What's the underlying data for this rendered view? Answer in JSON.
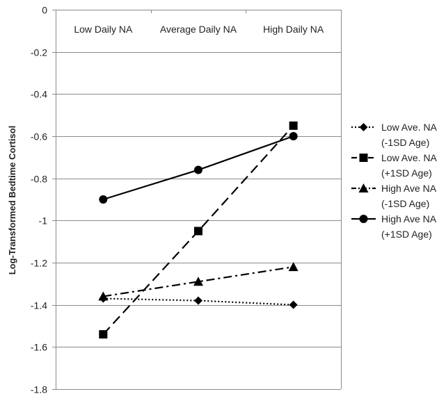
{
  "chart_data": {
    "type": "line",
    "title": "",
    "xlabel": "",
    "ylabel": "Log-Transformed Bedtime Cortisol",
    "categories": [
      "Low Daily NA",
      "Average Daily NA",
      "High Daily NA"
    ],
    "ylim": [
      -1.8,
      0
    ],
    "y_ticks": [
      "0",
      "-0.2",
      "-0.4",
      "-0.6",
      "-0.8",
      "-1",
      "-1.2",
      "-1.4",
      "-1.6",
      "-1.8"
    ],
    "y_tick_values": [
      0,
      -0.2,
      -0.4,
      -0.6,
      -0.8,
      -1,
      -1.2,
      -1.4,
      -1.6,
      -1.8
    ],
    "x_axis_position": "top",
    "grid": "horizontal",
    "legend_position": "right",
    "series": [
      {
        "name": "Low Ave. NA (-1SD Age)",
        "label_lines": [
          "Low Ave. NA",
          "(-1SD Age)"
        ],
        "values": [
          -1.37,
          -1.38,
          -1.4
        ],
        "marker": "diamond",
        "dash": "dotted",
        "color": "#000000"
      },
      {
        "name": "Low Ave. NA (+1SD Age)",
        "label_lines": [
          "Low Ave. NA",
          "(+1SD Age)"
        ],
        "values": [
          -1.54,
          -1.05,
          -0.55
        ],
        "marker": "square",
        "dash": "long-dash",
        "color": "#000000"
      },
      {
        "name": "High Ave NA (-1SD Age)",
        "label_lines": [
          "High Ave NA",
          "(-1SD Age)"
        ],
        "values": [
          -1.36,
          -1.29,
          -1.22
        ],
        "marker": "triangle",
        "dash": "dash-dot",
        "color": "#000000"
      },
      {
        "name": "High Ave NA (+1SD Age)",
        "label_lines": [
          "High Ave NA",
          "(+1SD Age)"
        ],
        "values": [
          -0.9,
          -0.76,
          -0.6
        ],
        "marker": "circle",
        "dash": "solid",
        "color": "#000000"
      }
    ]
  }
}
